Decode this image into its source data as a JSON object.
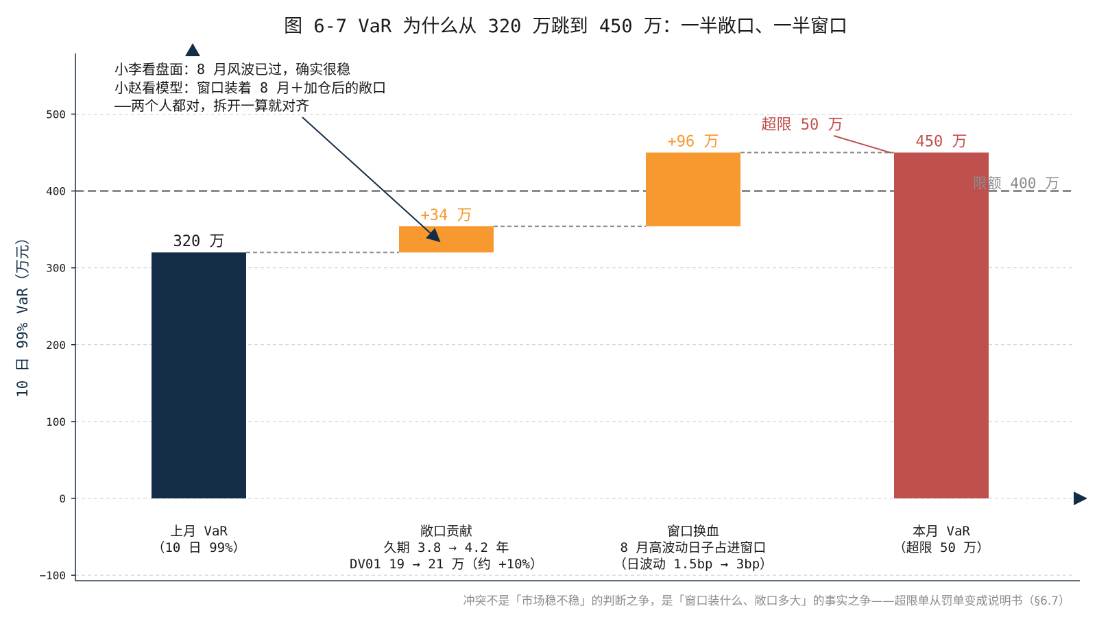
{
  "chart_data": {
    "type": "bar",
    "subtype": "waterfall",
    "title": "图 6-7 VaR 为什么从 320 万跳到 450 万：一半敞口、一半窗口",
    "ylabel": "10 日 99% VaR（万元）",
    "xlabel": "",
    "ylim": [
      -100,
      590
    ],
    "yticks": [
      -100,
      0,
      100,
      200,
      300,
      400,
      500
    ],
    "grid": true,
    "categories": [
      [
        "上月 VaR",
        "（10 日 99%）"
      ],
      [
        "敞口贡献",
        "久期 3.8 → 4.2 年",
        "DV01 19 → 21 万（约 +10%）"
      ],
      [
        "窗口换血",
        "8 月高波动日子占进窗口",
        "（日波动 1.5bp → 3bp）"
      ],
      [
        "本月 VaR",
        "（超限 50 万）"
      ]
    ],
    "bars": [
      {
        "kind": "total",
        "start": 0,
        "end": 320,
        "label": "320 万",
        "color": "#132d46"
      },
      {
        "kind": "delta",
        "start": 320,
        "end": 354,
        "label": "+34 万",
        "color": "#f7992e"
      },
      {
        "kind": "delta",
        "start": 354,
        "end": 450,
        "label": "+96 万",
        "color": "#f7992e"
      },
      {
        "kind": "total",
        "start": 0,
        "end": 450,
        "label": "450 万",
        "color": "#c0504d"
      }
    ],
    "limit": {
      "value": 400,
      "label": "限额 400 万",
      "color": "#8c8c8c"
    },
    "annotations": [
      {
        "lines": [
          "小李看盘面：8 月风波已过，确实很稳",
          "小赵看模型：窗口装着 8 月＋加仓后的敞口",
          "——两个人都对，拆开一算就对齐"
        ],
        "color": "#1a1a1a"
      },
      {
        "text": "超限 50 万",
        "color": "#c0504d"
      }
    ]
  },
  "caption": "冲突不是「市场稳不稳」的判断之争，是「窗口装什么、敞口多大」的事实之争——超限单从罚单变成说明书（§6.7）",
  "colors": {
    "axis": "#132d46",
    "grid": "#cccccc",
    "connector": "#8c8c8c",
    "accent_orange": "#f7992e",
    "accent_red": "#c0504d",
    "navy": "#132d46"
  }
}
